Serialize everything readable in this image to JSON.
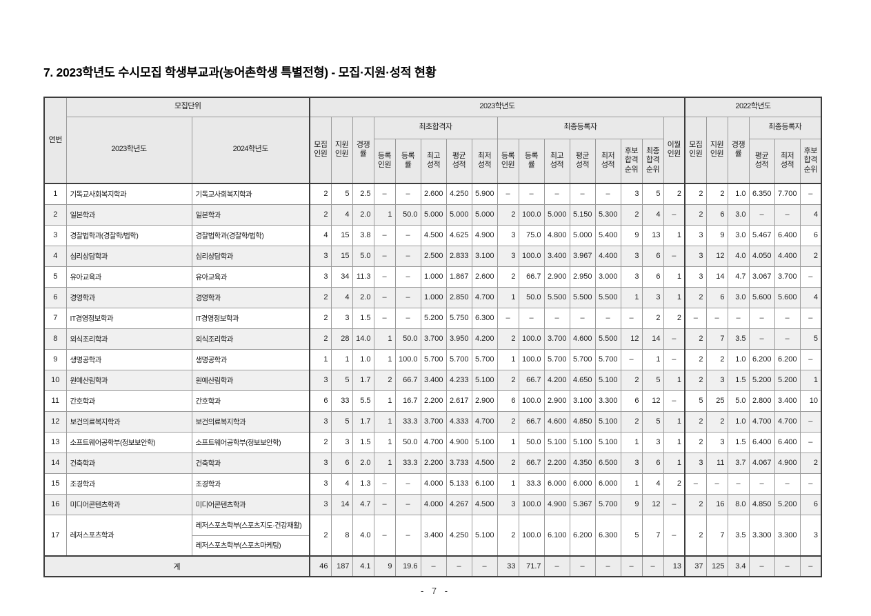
{
  "title": "7. 2023학년도 수시모집 학생부교과(농어촌학생 특별전형) - 모집·지원·성적 현황",
  "footer": {
    "page_number": "- 7 -"
  },
  "table": {
    "headers": {
      "seq": "연번",
      "recruit_unit": "모집단위",
      "year_2023_col": "2023학년도",
      "year_2024_col": "2024학년도",
      "group_2023": "2023학년도",
      "group_2022": "2022학년도",
      "first_admitted": "최초합격자",
      "final_registered": "최종등록자",
      "final_registered_2022": "최종등록자",
      "leaf_2023": [
        "모집\n인원",
        "지원\n인원",
        "경쟁\n률",
        "등록\n인원",
        "등록\n률",
        "최고\n성적",
        "평균\n성적",
        "최저\n성적",
        "등록\n인원",
        "등록\n률",
        "최고\n성적",
        "평균\n성적",
        "최저\n성적",
        "후보\n합격\n순위",
        "최종\n합격\n순위",
        "이월\n인원"
      ],
      "leaf_2022": [
        "모집\n인원",
        "지원\n인원",
        "경쟁\n률",
        "평균\n성적",
        "최저\n성적",
        "후보\n합격\n순위"
      ]
    },
    "rows": [
      {
        "no": "1",
        "dept_2023": "기독교사회복지학과",
        "dept_2024": [
          "기독교사회복지학과"
        ],
        "values": [
          "2",
          "5",
          "2.5",
          "–",
          "–",
          "2.600",
          "4.250",
          "5.900",
          "–",
          "–",
          "–",
          "–",
          "–",
          "3",
          "5",
          "2",
          "2",
          "2",
          "1.0",
          "6.350",
          "7.700",
          "–"
        ]
      },
      {
        "no": "2",
        "dept_2023": "일본학과",
        "dept_2024": [
          "일본학과"
        ],
        "values": [
          "2",
          "4",
          "2.0",
          "1",
          "50.0",
          "5.000",
          "5.000",
          "5.000",
          "2",
          "100.0",
          "5.000",
          "5.150",
          "5.300",
          "2",
          "4",
          "–",
          "2",
          "6",
          "3.0",
          "–",
          "–",
          "4"
        ]
      },
      {
        "no": "3",
        "dept_2023": "경찰법학과(경찰학/법학)",
        "dept_2024": [
          "경찰법학과(경찰학/법학)"
        ],
        "values": [
          "4",
          "15",
          "3.8",
          "–",
          "–",
          "4.500",
          "4.625",
          "4.900",
          "3",
          "75.0",
          "4.800",
          "5.000",
          "5.400",
          "9",
          "13",
          "1",
          "3",
          "9",
          "3.0",
          "5.467",
          "6.400",
          "6"
        ]
      },
      {
        "no": "4",
        "dept_2023": "심리상담학과",
        "dept_2024": [
          "심리상담학과"
        ],
        "values": [
          "3",
          "15",
          "5.0",
          "–",
          "–",
          "2.500",
          "2.833",
          "3.100",
          "3",
          "100.0",
          "3.400",
          "3.967",
          "4.400",
          "3",
          "6",
          "–",
          "3",
          "12",
          "4.0",
          "4.050",
          "4.400",
          "2"
        ]
      },
      {
        "no": "5",
        "dept_2023": "유아교육과",
        "dept_2024": [
          "유아교육과"
        ],
        "values": [
          "3",
          "34",
          "11.3",
          "–",
          "–",
          "1.000",
          "1.867",
          "2.600",
          "2",
          "66.7",
          "2.900",
          "2.950",
          "3.000",
          "3",
          "6",
          "1",
          "3",
          "14",
          "4.7",
          "3.067",
          "3.700",
          "–"
        ]
      },
      {
        "no": "6",
        "dept_2023": "경영학과",
        "dept_2024": [
          "경영학과"
        ],
        "values": [
          "2",
          "4",
          "2.0",
          "–",
          "–",
          "1.000",
          "2.850",
          "4.700",
          "1",
          "50.0",
          "5.500",
          "5.500",
          "5.500",
          "1",
          "3",
          "1",
          "2",
          "6",
          "3.0",
          "5.600",
          "5.600",
          "4"
        ]
      },
      {
        "no": "7",
        "dept_2023": "IT경영정보학과",
        "dept_2024": [
          "IT경영정보학과"
        ],
        "values": [
          "2",
          "3",
          "1.5",
          "–",
          "–",
          "5.200",
          "5.750",
          "6.300",
          "–",
          "–",
          "–",
          "–",
          "–",
          "–",
          "2",
          "2",
          "–",
          "–",
          "–",
          "–",
          "–",
          "–"
        ]
      },
      {
        "no": "8",
        "dept_2023": "외식조리학과",
        "dept_2024": [
          "외식조리학과"
        ],
        "values": [
          "2",
          "28",
          "14.0",
          "1",
          "50.0",
          "3.700",
          "3.950",
          "4.200",
          "2",
          "100.0",
          "3.700",
          "4.600",
          "5.500",
          "12",
          "14",
          "–",
          "2",
          "7",
          "3.5",
          "–",
          "–",
          "5"
        ]
      },
      {
        "no": "9",
        "dept_2023": "생명공학과",
        "dept_2024": [
          "생명공학과"
        ],
        "values": [
          "1",
          "1",
          "1.0",
          "1",
          "100.0",
          "5.700",
          "5.700",
          "5.700",
          "1",
          "100.0",
          "5.700",
          "5.700",
          "5.700",
          "–",
          "1",
          "–",
          "2",
          "2",
          "1.0",
          "6.200",
          "6.200",
          "–"
        ]
      },
      {
        "no": "10",
        "dept_2023": "원예산림학과",
        "dept_2024": [
          "원예산림학과"
        ],
        "values": [
          "3",
          "5",
          "1.7",
          "2",
          "66.7",
          "3.400",
          "4.233",
          "5.100",
          "2",
          "66.7",
          "4.200",
          "4.650",
          "5.100",
          "2",
          "5",
          "1",
          "2",
          "3",
          "1.5",
          "5.200",
          "5.200",
          "1"
        ]
      },
      {
        "no": "11",
        "dept_2023": "간호학과",
        "dept_2024": [
          "간호학과"
        ],
        "values": [
          "6",
          "33",
          "5.5",
          "1",
          "16.7",
          "2.200",
          "2.617",
          "2.900",
          "6",
          "100.0",
          "2.900",
          "3.100",
          "3.300",
          "6",
          "12",
          "–",
          "5",
          "25",
          "5.0",
          "2.800",
          "3.400",
          "10"
        ]
      },
      {
        "no": "12",
        "dept_2023": "보건의료복지학과",
        "dept_2024": [
          "보건의료복지학과"
        ],
        "values": [
          "3",
          "5",
          "1.7",
          "1",
          "33.3",
          "3.700",
          "4.333",
          "4.700",
          "2",
          "66.7",
          "4.600",
          "4.850",
          "5.100",
          "2",
          "5",
          "1",
          "2",
          "2",
          "1.0",
          "4.700",
          "4.700",
          "–"
        ]
      },
      {
        "no": "13",
        "dept_2023": "소프트웨어공학부(정보보안학)",
        "dept_2024": [
          "소프트웨어공학부(정보보안학)"
        ],
        "values": [
          "2",
          "3",
          "1.5",
          "1",
          "50.0",
          "4.700",
          "4.900",
          "5.100",
          "1",
          "50.0",
          "5.100",
          "5.100",
          "5.100",
          "1",
          "3",
          "1",
          "2",
          "3",
          "1.5",
          "6.400",
          "6.400",
          "–"
        ]
      },
      {
        "no": "14",
        "dept_2023": "건축학과",
        "dept_2024": [
          "건축학과"
        ],
        "values": [
          "3",
          "6",
          "2.0",
          "1",
          "33.3",
          "2.200",
          "3.733",
          "4.500",
          "2",
          "66.7",
          "2.200",
          "4.350",
          "6.500",
          "3",
          "6",
          "1",
          "3",
          "11",
          "3.7",
          "4.067",
          "4.900",
          "2"
        ]
      },
      {
        "no": "15",
        "dept_2023": "조경학과",
        "dept_2024": [
          "조경학과"
        ],
        "values": [
          "3",
          "4",
          "1.3",
          "–",
          "–",
          "4.000",
          "5.133",
          "6.100",
          "1",
          "33.3",
          "6.000",
          "6.000",
          "6.000",
          "1",
          "4",
          "2",
          "–",
          "–",
          "–",
          "–",
          "–",
          "–"
        ]
      },
      {
        "no": "16",
        "dept_2023": "미디어콘텐츠학과",
        "dept_2024": [
          "미디어콘텐츠학과"
        ],
        "values": [
          "3",
          "14",
          "4.7",
          "–",
          "–",
          "4.000",
          "4.267",
          "4.500",
          "3",
          "100.0",
          "4.900",
          "5.367",
          "5.700",
          "9",
          "12",
          "–",
          "2",
          "16",
          "8.0",
          "4.850",
          "5.200",
          "6"
        ]
      },
      {
        "no": "17",
        "dept_2023": "레저스포츠학과",
        "dept_2024": [
          "레저스포츠학부(스포츠지도·건강재활)",
          "레저스포츠학부(스포츠마케팅)"
        ],
        "values": [
          "2",
          "8",
          "4.0",
          "–",
          "–",
          "3.400",
          "4.250",
          "5.100",
          "2",
          "100.0",
          "6.100",
          "6.200",
          "6.300",
          "5",
          "7",
          "–",
          "2",
          "7",
          "3.5",
          "3.300",
          "3.300",
          "3"
        ]
      }
    ],
    "total": {
      "label": "계",
      "values": [
        "46",
        "187",
        "4.1",
        "9",
        "19.6",
        "–",
        "–",
        "–",
        "33",
        "71.7",
        "–",
        "–",
        "–",
        "–",
        "–",
        "13",
        "37",
        "125",
        "3.4",
        "–",
        "–",
        "–"
      ]
    }
  }
}
